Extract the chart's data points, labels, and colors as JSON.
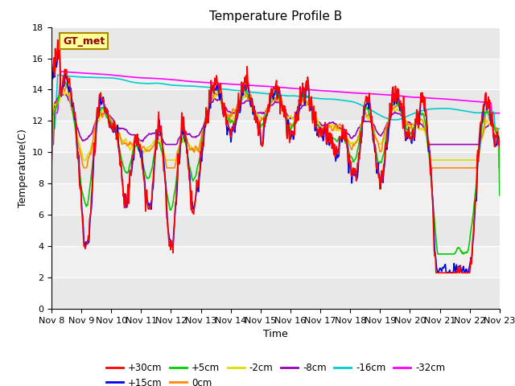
{
  "title": "Temperature Profile B",
  "xlabel": "Time",
  "ylabel": "Temperature(C)",
  "ylim": [
    0,
    18
  ],
  "n_days": 15,
  "x_tick_labels": [
    "Nov 8",
    "Nov 9",
    "Nov 10",
    "Nov 11",
    "Nov 12",
    "Nov 13",
    "Nov 14",
    "Nov 15",
    "Nov 16",
    "Nov 17",
    "Nov 18",
    "Nov 19",
    "Nov 20",
    "Nov 21",
    "Nov 22",
    "Nov 23"
  ],
  "series_colors": {
    "+30cm": "#ff0000",
    "+15cm": "#0000ee",
    "+5cm": "#00cc00",
    "0cm": "#ff8800",
    "-2cm": "#dddd00",
    "-8cm": "#9900bb",
    "-16cm": "#00cccc",
    "-32cm": "#ff00ff"
  },
  "legend_label": "GT_met",
  "legend_bg": "#ffff99",
  "legend_border": "#aa8800",
  "bg_color": "#ffffff",
  "plot_bg_color": "#e8e8e8",
  "stripe_color": "#d8d8d8",
  "grid_color": "#ffffff",
  "title_fontsize": 11,
  "axis_fontsize": 9,
  "tick_fontsize": 8
}
